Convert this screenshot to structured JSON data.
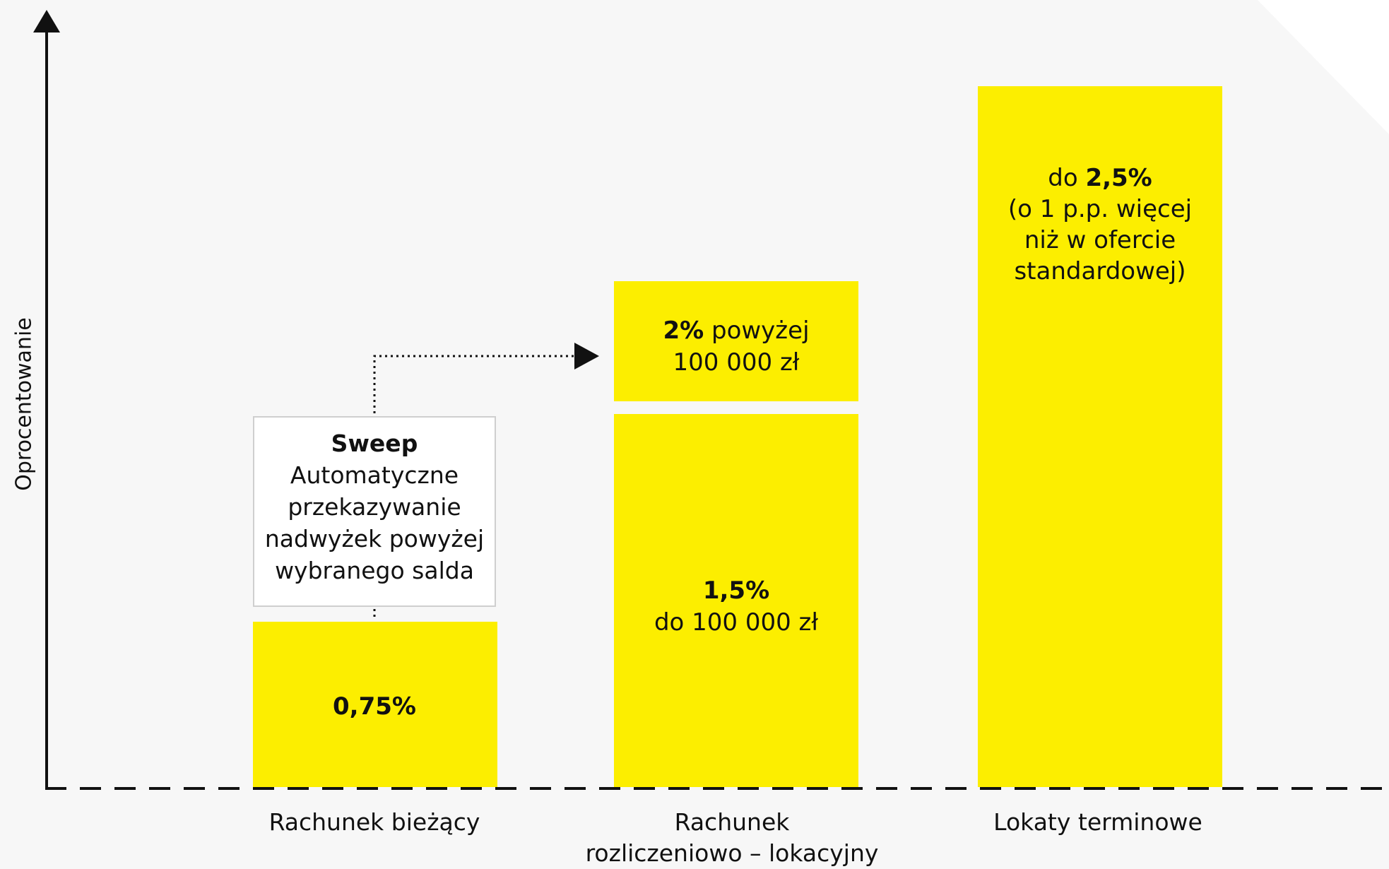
{
  "colors": {
    "background": "#f7f7f7",
    "bar": "#fcee00",
    "axis": "#111111",
    "box_border": "#cfcfcf",
    "corner": "#ffffff"
  },
  "icons": [
    "y-axis-arrowhead-icon",
    "sweep-arrow-icon"
  ],
  "chart_data": {
    "type": "bar",
    "ylabel": "Oprocentowanie",
    "xlabel": "",
    "grid": false,
    "y_axis_ticks": false,
    "categories": [
      "Rachunek bieżący",
      "Rachunek rozliczeniowo – lokacyjny",
      "Lokaty terminowe"
    ],
    "values_percent": [
      0.75,
      2,
      2.5
    ],
    "segments_percent": {
      "Rachunek rozliczeniowo – lokacyjny": [
        1.5,
        2
      ]
    },
    "bars": [
      {
        "category_line1": "Rachunek bieżący",
        "category_line2": "",
        "label_bold": "0,75%",
        "label_rest": ""
      },
      {
        "category_line1": "Rachunek",
        "category_line2": "rozliczeniowo – lokacyjny",
        "lower": {
          "bold": "1,5%",
          "line2": "do 100 000 zł"
        },
        "upper": {
          "bold": "2%",
          "rest": " powyżej",
          "line2": "100 000 zł"
        }
      },
      {
        "category_line1": "Lokaty terminowe",
        "category_line2": "",
        "prefix": "do ",
        "label_bold": "2,5%",
        "line2": "(o 1 p.p. więcej",
        "line3": "niż w ofercie",
        "line4": "standardowej)"
      }
    ],
    "annotation": {
      "title": "Sweep",
      "lines": [
        "Automatyczne",
        "przekazywanie",
        "nadwyżek powyżej",
        "wybranego salda"
      ]
    }
  }
}
